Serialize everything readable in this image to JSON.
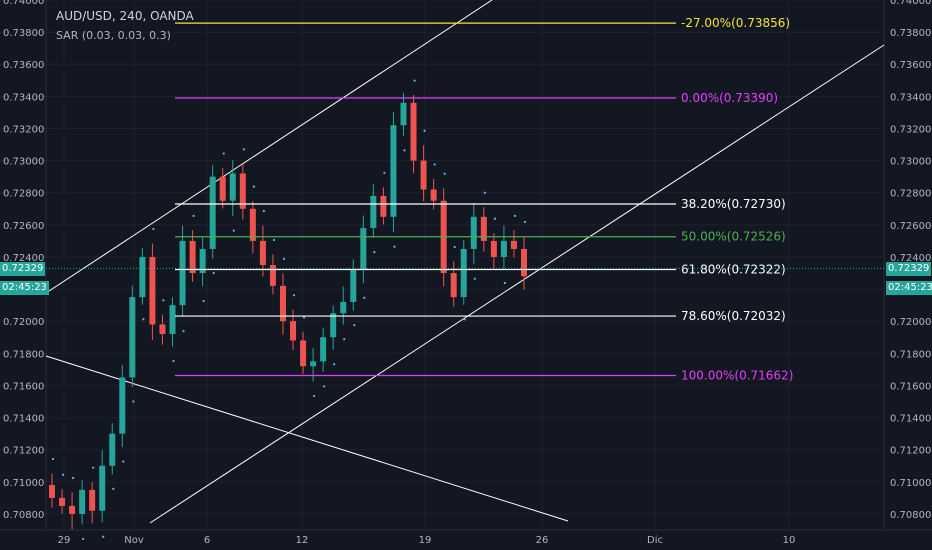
{
  "header": {
    "title": "AUD/USD, 240, OANDA",
    "indicator": "SAR (0.03, 0.03, 0.3)"
  },
  "price_tag": {
    "price": "0.72329",
    "countdown": "02:45:23"
  },
  "colors": {
    "background": "#131722",
    "up_candle": "#26a69a",
    "down_candle": "#ef5350",
    "fib_yellow": "#f0e442",
    "fib_magenta": "#e040fb",
    "fib_green": "#4caf50",
    "fib_white": "#ffffff",
    "sar_dots": "#64b5f6"
  },
  "chart_data": {
    "type": "candlestick",
    "symbol": "AUD/USD",
    "ylim": [
      0.707,
      0.74
    ],
    "y_ticks": [
      "0.70800",
      "0.71000",
      "0.71200",
      "0.71400",
      "0.71600",
      "0.71800",
      "0.72000",
      "0.72200",
      "0.72400",
      "0.72600",
      "0.72800",
      "0.73000",
      "0.73200",
      "0.73400",
      "0.73600",
      "0.73800",
      "0.74000"
    ],
    "x_ticks": [
      "29",
      "Nov",
      "6",
      "12",
      "19",
      "26",
      "Dic",
      "10"
    ],
    "fib_levels": [
      {
        "label": "-27.00%(0.73856)",
        "value": 0.73856,
        "color": "#f0e442"
      },
      {
        "label": "0.00%(0.73390)",
        "value": 0.7339,
        "color": "#e040fb"
      },
      {
        "label": "38.20%(0.72730)",
        "value": 0.7273,
        "color": "#ffffff"
      },
      {
        "label": "50.00%(0.72526)",
        "value": 0.72526,
        "color": "#4caf50"
      },
      {
        "label": "61.80%(0.72322)",
        "value": 0.72322,
        "color": "#ffffff"
      },
      {
        "label": "78.60%(0.72032)",
        "value": 0.72032,
        "color": "#ffffff"
      },
      {
        "label": "100.00%(0.71662)",
        "value": 0.71662,
        "color": "#e040fb"
      }
    ],
    "approx_close_path": [
      0.709,
      0.7085,
      0.708,
      0.7095,
      0.7082,
      0.711,
      0.713,
      0.7165,
      0.7215,
      0.724,
      0.7198,
      0.7192,
      0.721,
      0.725,
      0.723,
      0.7245,
      0.729,
      0.7275,
      0.7292,
      0.727,
      0.725,
      0.7235,
      0.7222,
      0.72,
      0.7188,
      0.7172,
      0.7175,
      0.719,
      0.7205,
      0.7212,
      0.7232,
      0.7258,
      0.7278,
      0.7265,
      0.7322,
      0.7336,
      0.73,
      0.7282,
      0.7275,
      0.723,
      0.7215,
      0.7245,
      0.7265,
      0.725,
      0.724,
      0.725,
      0.7245,
      0.7228
    ],
    "last_price": 0.72329
  }
}
